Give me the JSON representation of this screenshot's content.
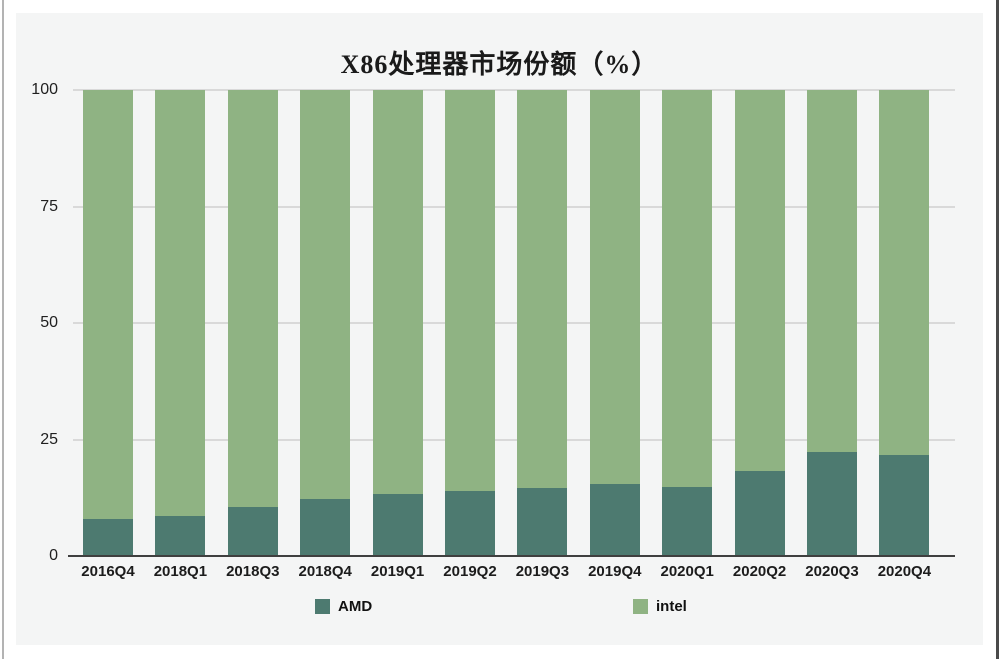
{
  "chart_data": {
    "type": "bar",
    "stacked": true,
    "title": "X86处理器市场份额（%）",
    "categories": [
      "2016Q4",
      "2018Q1",
      "2018Q3",
      "2018Q4",
      "2019Q1",
      "2019Q2",
      "2019Q3",
      "2019Q4",
      "2020Q1",
      "2020Q2",
      "2020Q3",
      "2020Q4"
    ],
    "series": [
      {
        "name": "AMD",
        "color": "#4d7a70",
        "values": [
          8.0,
          8.6,
          10.6,
          12.3,
          13.3,
          13.9,
          14.6,
          15.5,
          14.8,
          18.3,
          22.4,
          21.7
        ]
      },
      {
        "name": "intel",
        "color": "#8fb383",
        "values": [
          92.0,
          91.4,
          89.4,
          87.7,
          86.7,
          86.1,
          85.4,
          84.5,
          85.2,
          81.7,
          77.6,
          78.3
        ]
      }
    ],
    "xlabel": "",
    "ylabel": "",
    "y_ticks": [
      0,
      25,
      50,
      75,
      100
    ],
    "ylim": [
      0,
      100
    ],
    "grid": true,
    "legend_position": "bottom",
    "panel_background": "#f4f5f5",
    "gridline_color": "#d9d9d9",
    "axis_line_color": "#3f3f3f"
  }
}
